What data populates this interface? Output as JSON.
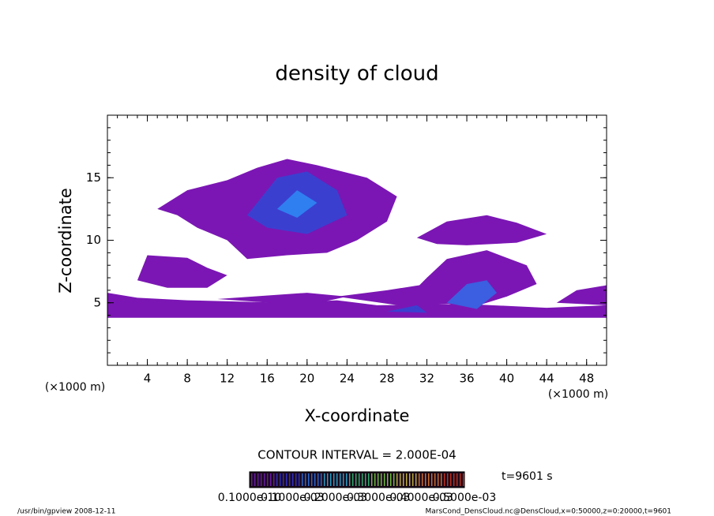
{
  "chart_data": {
    "type": "contour",
    "title": "density of cloud",
    "x_label": "X-coordinate",
    "y_label": "Z-coordinate",
    "x_unit": "(×1000 m)",
    "y_unit": "(×1000 m)",
    "xlim": [
      0,
      50
    ],
    "xticks": [
      4,
      8,
      12,
      16,
      20,
      24,
      28,
      32,
      36,
      40,
      44,
      48
    ],
    "ylim": [
      0,
      20
    ],
    "yticks": [
      5,
      10,
      15
    ],
    "contour_interval": "CONTOUR INTERVAL = 2.000E-04",
    "time_label": "t=9601 s",
    "colorbar_labels": [
      "0.1000e-10",
      "0.1000e-03",
      "0.2000e-03",
      "0.3000e-03",
      "0.4000e-03",
      "0.5000e-03"
    ],
    "footer_left": "/usr/bin/gpview   2008-12-11",
    "footer_right": "MarsCond_DensCloud.nc@DensCloud,x=0:50000,z=0:20000,t=9601"
  }
}
